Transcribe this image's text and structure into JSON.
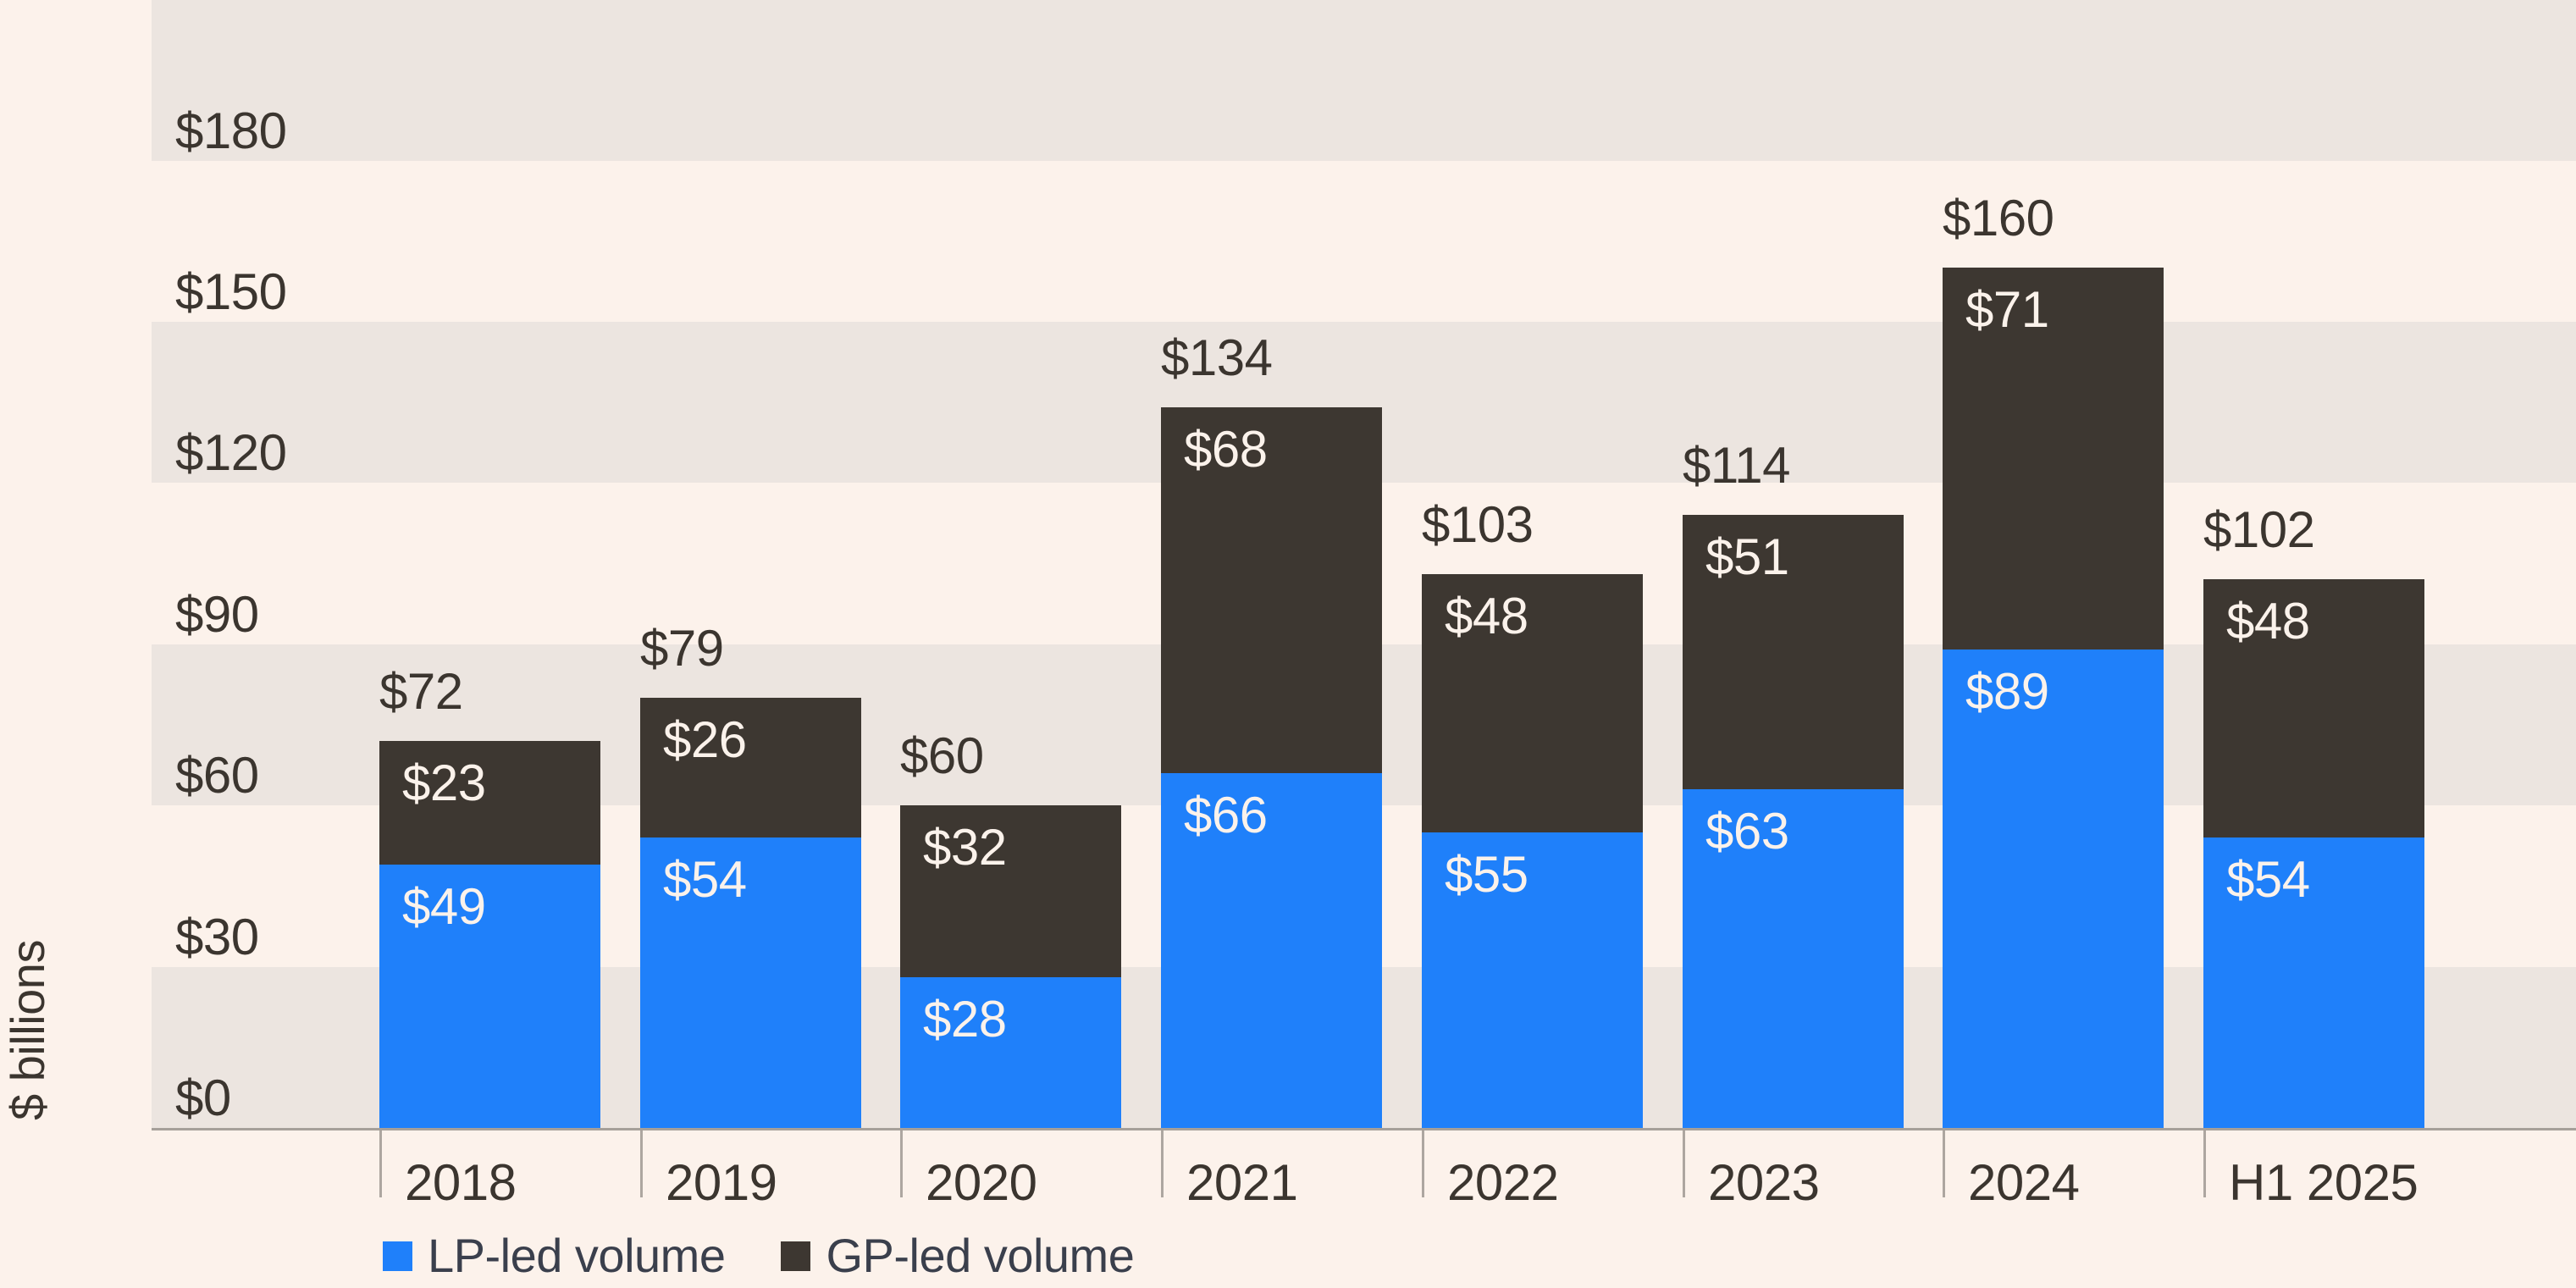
{
  "chart_data": {
    "type": "bar",
    "stacked": true,
    "categories": [
      "2018",
      "2019",
      "2020",
      "2021",
      "2022",
      "2023",
      "2024",
      "H1 2025"
    ],
    "series": [
      {
        "name": "LP-led volume",
        "color": "#1F80FA",
        "values": [
          49,
          54,
          28,
          66,
          55,
          63,
          89,
          54
        ],
        "value_labels": [
          "$49",
          "$54",
          "$28",
          "$66",
          "$55",
          "$63",
          "$89",
          "$54"
        ]
      },
      {
        "name": "GP-led volume",
        "color": "#3D3731",
        "values": [
          23,
          26,
          32,
          68,
          48,
          51,
          71,
          48
        ],
        "value_labels": [
          "$23",
          "$26",
          "$32",
          "$68",
          "$48",
          "$51",
          "$71",
          "$48"
        ]
      }
    ],
    "total_values": [
      72,
      79,
      60,
      134,
      103,
      114,
      160,
      102
    ],
    "total_labels": [
      "$72",
      "$79",
      "$60",
      "$134",
      "$103",
      "$114",
      "$160",
      "$102"
    ],
    "ylabel": "$ billions",
    "xlabel": "",
    "ylim": [
      0,
      210
    ],
    "y_ticks": [
      {
        "value": 0,
        "label": "$0"
      },
      {
        "value": 30,
        "label": "$30"
      },
      {
        "value": 60,
        "label": "$60"
      },
      {
        "value": 90,
        "label": "$90"
      },
      {
        "value": 120,
        "label": "$120"
      },
      {
        "value": 150,
        "label": "$150"
      },
      {
        "value": 180,
        "label": "$180"
      }
    ],
    "grid": "horizontal-bands",
    "legend_position": "bottom-left",
    "legend": {
      "items": [
        {
          "label": "LP-led volume",
          "swatch_color": "#1F80FA"
        },
        {
          "label": "GP-led volume",
          "swatch_color": "#3D3731"
        }
      ]
    },
    "colors": {
      "background": "#FCF2EB",
      "band": "#ECE5E0",
      "axis_line": "#A6A09A",
      "tick": "#ADA6A0",
      "label_dark": "#3B352F",
      "label_light": "#FBF2EB",
      "legend_text": "#3A3F4C"
    }
  }
}
